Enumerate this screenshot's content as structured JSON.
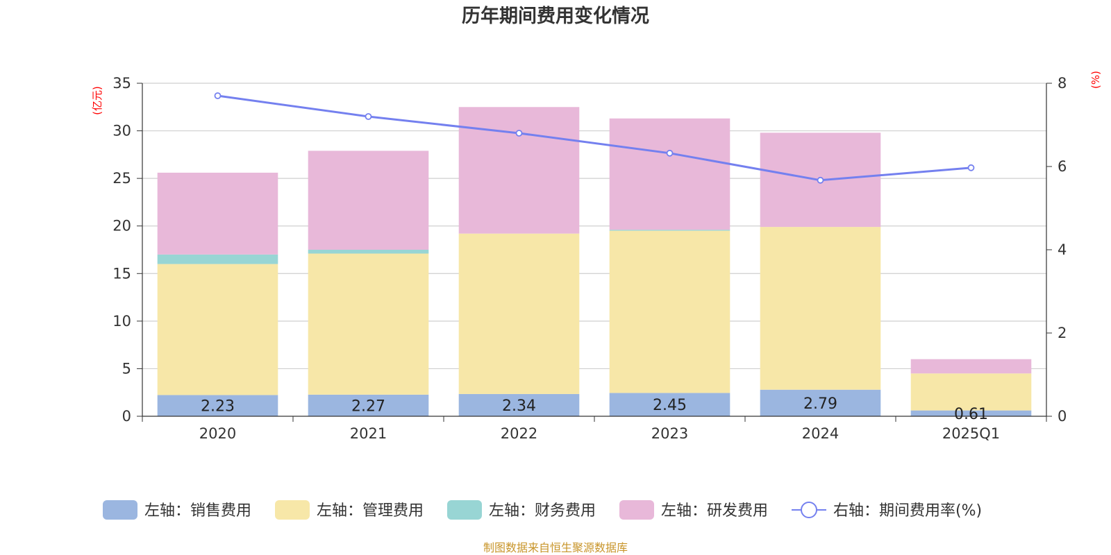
{
  "chart_data": {
    "type": "bar",
    "stacked": true,
    "title": "历年期间费用变化情况",
    "left_axis_unit": "(亿元)",
    "right_axis_unit": "(%)",
    "categories": [
      "2020",
      "2021",
      "2022",
      "2023",
      "2024",
      "2025Q1"
    ],
    "left_ylim": [
      0,
      35
    ],
    "left_ticks": [
      "0",
      "5",
      "10",
      "15",
      "20",
      "25",
      "30",
      "35"
    ],
    "right_ylim": [
      0,
      8
    ],
    "right_ticks": [
      "0",
      "2",
      "4",
      "6",
      "8"
    ],
    "grid": true,
    "legend_position": "bottom",
    "series": [
      {
        "name": "左轴：销售费用",
        "type": "bar",
        "axis": "left",
        "color": "#9bb6e0",
        "values": [
          2.23,
          2.27,
          2.34,
          2.45,
          2.79,
          0.61
        ],
        "labels": [
          "2.23",
          "2.27",
          "2.34",
          "2.45",
          "2.79",
          "0.61"
        ]
      },
      {
        "name": "左轴：管理费用",
        "type": "bar",
        "axis": "left",
        "color": "#f7e7a8",
        "values": [
          13.77,
          14.83,
          16.86,
          17.05,
          17.11,
          3.89
        ]
      },
      {
        "name": "左轴：财务费用",
        "type": "bar",
        "axis": "left",
        "color": "#98d5d4",
        "values": [
          1.0,
          0.4,
          0.0,
          0.1,
          0.0,
          0.0
        ]
      },
      {
        "name": "左轴：研发费用",
        "type": "bar",
        "axis": "left",
        "color": "#e8b8d9",
        "values": [
          8.6,
          10.4,
          13.3,
          11.7,
          9.9,
          1.5
        ]
      },
      {
        "name": "右轴：期间费用率(%)",
        "type": "line",
        "axis": "right",
        "color": "#7480ef",
        "values": [
          7.7,
          7.2,
          6.8,
          6.32,
          5.67,
          5.97
        ]
      }
    ]
  },
  "footer": {
    "source": "制图数据来自恒生聚源数据库"
  }
}
